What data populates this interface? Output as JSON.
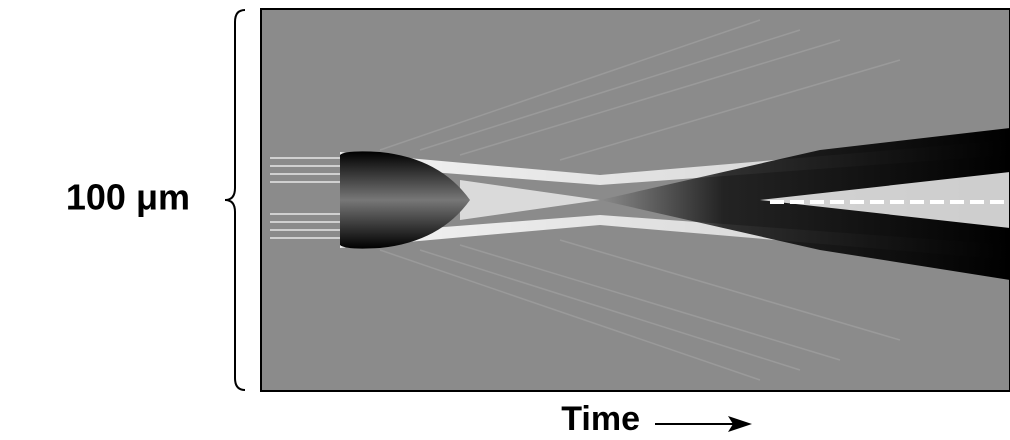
{
  "labels": {
    "scale": "100 μm",
    "x_axis": "Time"
  }
}
